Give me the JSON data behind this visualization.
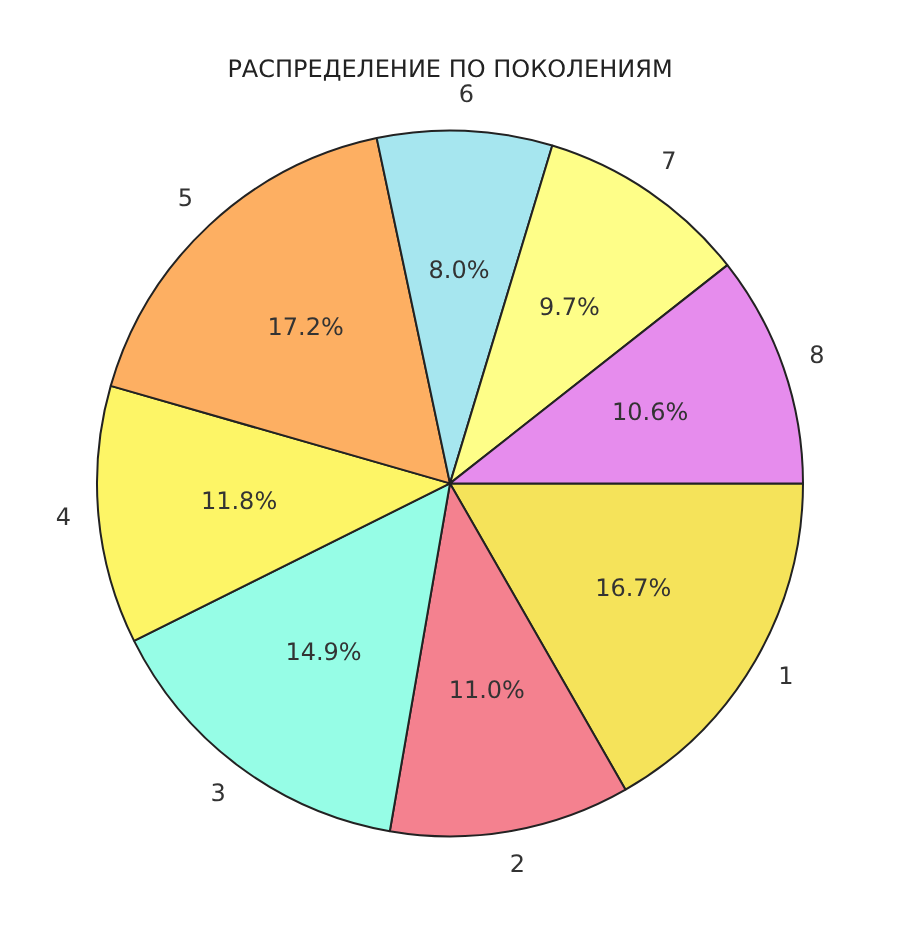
{
  "chart_data": {
    "type": "pie",
    "title": "РАСПРЕДЕЛЕНИЕ ПО ПОКОЛЕНИЯМ",
    "categories": [
      "1",
      "2",
      "3",
      "4",
      "5",
      "6",
      "7",
      "8"
    ],
    "values": [
      16.7,
      11.0,
      14.9,
      11.8,
      17.2,
      8.0,
      9.7,
      10.6
    ],
    "value_labels": [
      "16.7%",
      "11.0%",
      "14.9%",
      "11.8%",
      "17.2%",
      "8.0%",
      "9.7%",
      "10.6%"
    ],
    "colors": [
      "#f5e35a",
      "#f4818f",
      "#96fde6",
      "#fdf566",
      "#fdaf62",
      "#a6e6ef",
      "#fefe88",
      "#e68ced"
    ]
  }
}
